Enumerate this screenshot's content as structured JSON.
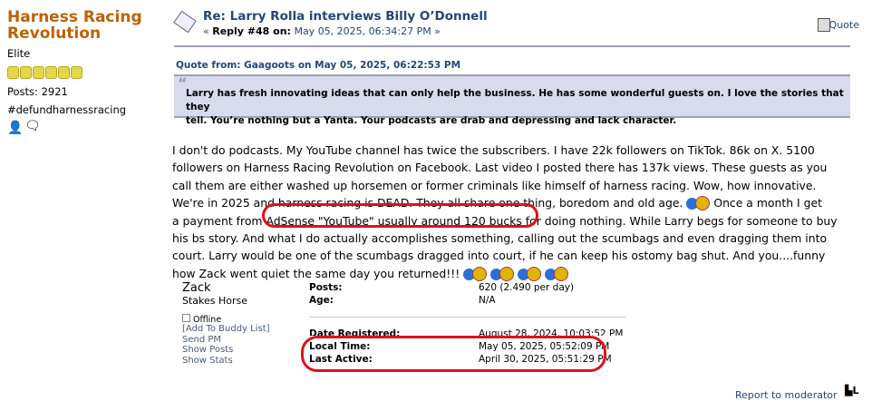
{
  "forum_title": "Harness Racing Revolution",
  "author": {
    "rank": "Elite",
    "stars": 6,
    "posts": "Posts: 2921",
    "tagline": "#defundharnessracing",
    "icons": [
      "profile-icon",
      "message-icon"
    ]
  },
  "post": {
    "title": "Re: Larry Rolla interviews Billy O’Donnell",
    "reply_prefix": "« ",
    "reply_label": "Reply #48 on:",
    "reply_date": " May 05, 2025, 06:34:27 PM »",
    "quote_button": "Quote"
  },
  "quote": {
    "header": "Quote from: Gaagoots on May 05, 2025, 06:22:53 PM",
    "lines": [
      "Larry has fresh innovating ideas that can only help the business.  He has some wonderful guests on. I love the stories that they",
      "tell. You’re nothing but a Yanta. Your podcasts are drab and depressing and lack character."
    ]
  },
  "body_lines": [
    "I don't do podcasts. My YouTube channel has twice the subscribers. I have 22k followers on TikTok. 86k on X. 5100",
    "followers on Harness Racing Revolution on Facebook. Last video I posted there has 137k views. These guests as you",
    "call them are either washed up horsemen or former criminals like himself of harness racing. Wow, how innovative.",
    "We're in 2025 and harness racing is DEAD. They all share one thing, boredom and old age. ",
    " Once a month I get",
    "a payment from AdSense \"YouTube\" usually around 120 bucks for doing nothing. While Larry begs for someone to buy",
    "his bs story. And what I do actually accomplishes something, calling out the scumbags and even dragging them into",
    "court. Larry would be one of the scumbags dragged into court, if he can keep his ostomy bag shut. And you....funny",
    "how Zack went quiet the same day you returned!!! "
  ],
  "profile": {
    "name": "Zack",
    "rank": "Stakes Horse",
    "status": "Offline",
    "links": [
      "[Add To Buddy List]",
      "Send PM",
      "Show Posts",
      "Show Stats"
    ],
    "stats": [
      {
        "label": "Posts:",
        "value": "620 (2.490 per day)"
      },
      {
        "label": "Age:",
        "value": "N/A"
      },
      {
        "label": "Date Registered:",
        "value": "August 28, 2024, 10:03:52 PM"
      },
      {
        "label": "Local Time:",
        "value": "May 05, 2025, 05:52:09 PM"
      },
      {
        "label": "Last Active:",
        "value": "April 30, 2025, 05:51:29 PM"
      }
    ]
  },
  "report": "Report to moderator",
  "colors": {
    "forum_title": "#c06002",
    "link": "#25467a",
    "quote_bg": "#d8dbeb",
    "annotation": "#e0101a"
  }
}
